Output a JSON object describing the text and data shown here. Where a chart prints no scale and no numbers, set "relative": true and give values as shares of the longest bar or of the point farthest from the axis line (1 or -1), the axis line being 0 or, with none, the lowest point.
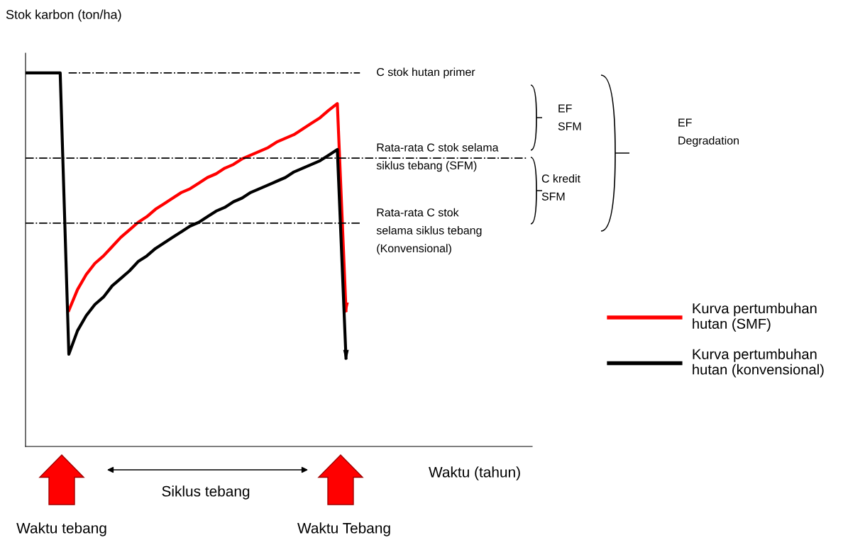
{
  "chart_data": {
    "type": "line",
    "relative": true,
    "xlabel": "Waktu (tahun)",
    "ylabel": "Stok karbon (ton/ha)",
    "categories": [
      null,
      null,
      null,
      null,
      null,
      null,
      null,
      null,
      null,
      null,
      null,
      null,
      null,
      null,
      null,
      null,
      null,
      null,
      null,
      null,
      null,
      null,
      null,
      null,
      null,
      null,
      null,
      null,
      null,
      null,
      null,
      null,
      null,
      null,
      null,
      null,
      null,
      null,
      null,
      null,
      null,
      null,
      null,
      null,
      null,
      null,
      null,
      null,
      null,
      null,
      null,
      null,
      null,
      null,
      null,
      null,
      null,
      null,
      null
    ],
    "series": [
      {
        "name": "Kurva pertumbuhan\nhutan (SMF)",
        "color": "#ff0000",
        "values": [
          null,
          null,
          null,
          null,
          null,
          0.364,
          0.42,
          0.46,
          0.49,
          0.51,
          0.535,
          0.56,
          0.58,
          0.6,
          0.615,
          0.635,
          0.65,
          0.665,
          0.68,
          0.69,
          0.705,
          0.72,
          0.73,
          0.745,
          0.755,
          0.77,
          0.78,
          0.79,
          0.8,
          0.815,
          0.825,
          0.835,
          0.85,
          0.865,
          0.88,
          0.9,
          0.918,
          0.364,
          null,
          null,
          null,
          null,
          null,
          null,
          null,
          null,
          null,
          null,
          null,
          null,
          null,
          null,
          null,
          null,
          null,
          null,
          null,
          null,
          null
        ]
      },
      {
        "name": "Kurva pertumbuhan\nhutan (konvensional)",
        "color": "#000000",
        "values": [
          1.0,
          1.0,
          1.0,
          1.0,
          1.0,
          0.247,
          0.31,
          0.35,
          0.38,
          0.4,
          0.43,
          0.45,
          0.47,
          0.495,
          0.51,
          0.53,
          0.545,
          0.56,
          0.575,
          0.59,
          0.6,
          0.615,
          0.63,
          0.64,
          0.655,
          0.665,
          0.68,
          0.69,
          0.7,
          0.71,
          0.72,
          0.735,
          0.745,
          0.755,
          0.765,
          0.78,
          0.795,
          0.237,
          null,
          null,
          null,
          null,
          null,
          null,
          null,
          null,
          null,
          null,
          null,
          null,
          null,
          null,
          null,
          null,
          null,
          null,
          null,
          null,
          null
        ]
      }
    ],
    "ref_lines": [
      {
        "axis": "y",
        "value": 1.0,
        "label": "C stok hutan primer",
        "color": "#000000",
        "line_style": "dashdot"
      },
      {
        "axis": "y",
        "value": 0.772,
        "label": "Rata-rata C stok selama\nsiklus tebang (SFM)",
        "color": "#000000",
        "line_style": "dashdot"
      },
      {
        "axis": "y",
        "value": 0.598,
        "label": "Rata-rata C stok\nselama siklus tebang\n(Konvensional)",
        "color": "#000000",
        "line_style": "dashdot"
      }
    ],
    "annotations": [
      "EF\nSFM",
      "C kredit\nSFM",
      "EF\nDegradation",
      "Siklus tebang",
      "Waktu tebang",
      "Waktu Tebang"
    ],
    "legend": "right",
    "marker": "none",
    "line_style": "solid"
  }
}
